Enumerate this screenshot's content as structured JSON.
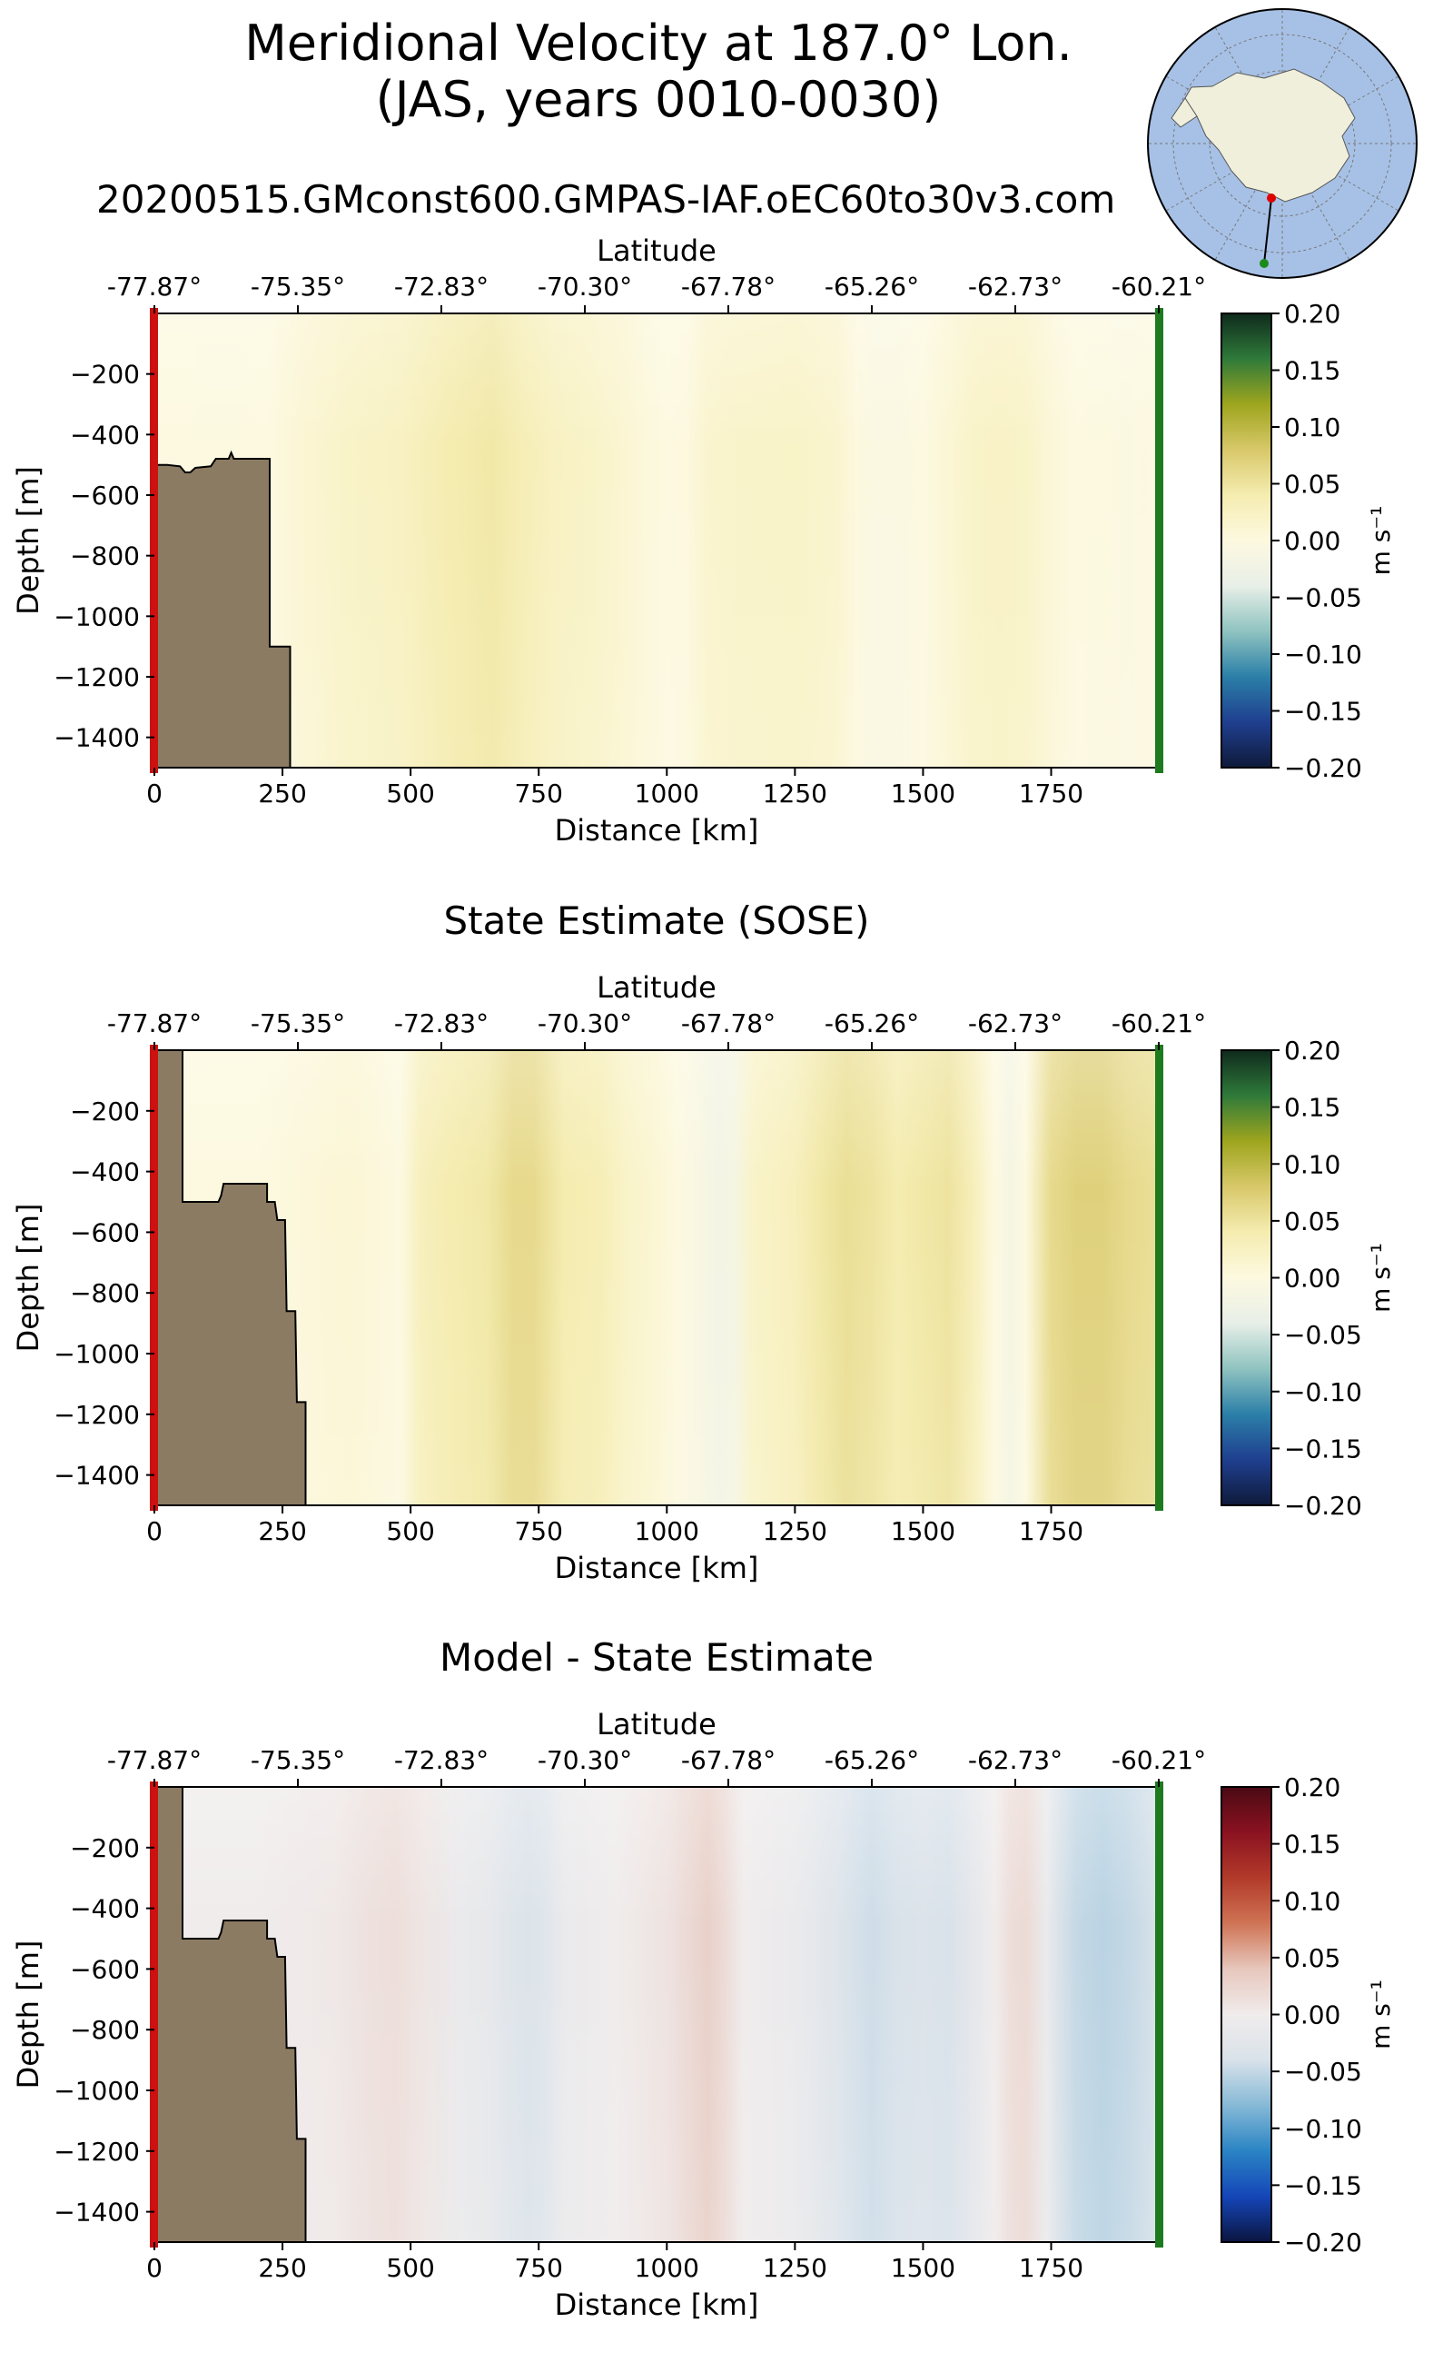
{
  "figure": {
    "title_line1": "Meridional Velocity at 187.0° Lon.",
    "title_line2": "(JAS, years 0010-0030)",
    "subtitle": "20200515.GMconst600.GMPAS-IAF.oEC60to30v3.com"
  },
  "inset_map": {
    "description_icon": "antarctica-polar-map-icon",
    "ocean_color": "#a7c1e6",
    "land_color": "#efefdc",
    "transect_start_color": "#e00000",
    "transect_end_color": "#1a8a1a"
  },
  "colors": {
    "bathymetry": "#8c7b63",
    "start_marker": "#cc1111",
    "end_marker": "#1e7a1e"
  },
  "colormaps": {
    "velocity": [
      "#0f1a3a",
      "#1f3f8f",
      "#2b7fa8",
      "#8fc3c0",
      "#e8efe8",
      "#fdf9e0",
      "#f5ecb0",
      "#d8c86a",
      "#9ea51e",
      "#2f7a3a",
      "#0f2a1c"
    ],
    "difference": [
      "#0b1540",
      "#1546b8",
      "#2a84c4",
      "#86b9d6",
      "#d9e2ea",
      "#f0ecec",
      "#e7c7bd",
      "#cf7455",
      "#b23a2a",
      "#8b1220",
      "#4a0a14"
    ]
  },
  "chart_data": [
    {
      "type": "heatmap",
      "title": "",
      "xlabel": "Distance [km]",
      "x_ticks": [
        "0",
        "250",
        "500",
        "750",
        "1000",
        "1250",
        "1500",
        "1750"
      ],
      "x_tick_values": [
        0,
        250,
        500,
        750,
        1000,
        1250,
        1500,
        1750
      ],
      "xlim": [
        0,
        1960
      ],
      "top_xlabel": "Latitude",
      "top_ticks": [
        "-77.87°",
        "-75.35°",
        "-72.83°",
        "-70.30°",
        "-67.78°",
        "-65.26°",
        "-62.73°",
        "-60.21°"
      ],
      "ylabel": "Depth [m]",
      "y_ticks": [
        "−200",
        "−400",
        "−600",
        "−800",
        "−1000",
        "−1200",
        "−1400"
      ],
      "y_tick_values": [
        -200,
        -400,
        -600,
        -800,
        -1000,
        -1200,
        -1400
      ],
      "ylim": [
        -1500,
        0
      ],
      "colorbar_label": "m s⁻¹",
      "colorbar_ticks": [
        "0.20",
        "0.15",
        "0.10",
        "0.05",
        "0.00",
        "−0.05",
        "−0.10",
        "−0.15",
        "−0.20"
      ],
      "colorbar_range": [
        -0.2,
        0.2
      ],
      "colormap": "velocity",
      "bathymetry": [
        [
          0,
          -500
        ],
        [
          25,
          -500
        ],
        [
          50,
          -505
        ],
        [
          60,
          -525
        ],
        [
          70,
          -525
        ],
        [
          80,
          -510
        ],
        [
          110,
          -505
        ],
        [
          120,
          -480
        ],
        [
          145,
          -480
        ],
        [
          150,
          -460
        ],
        [
          155,
          -480
        ],
        [
          225,
          -480
        ],
        [
          225,
          -1100
        ],
        [
          265,
          -1100
        ],
        [
          265,
          -1500
        ]
      ],
      "profile_x": [
        0,
        60,
        120,
        220,
        300,
        380,
        480,
        580,
        660,
        720,
        780,
        850,
        920,
        960,
        1000,
        1040,
        1080,
        1150,
        1250,
        1330,
        1370,
        1400,
        1450,
        1500,
        1550,
        1600,
        1650,
        1700,
        1760,
        1800,
        1850,
        1900,
        1960
      ],
      "profile_v": [
        0.0,
        0.0,
        -0.002,
        0.0,
        0.012,
        0.02,
        0.025,
        0.04,
        0.045,
        0.035,
        0.025,
        0.02,
        0.012,
        0.004,
        0.0,
        0.002,
        0.015,
        0.018,
        0.02,
        0.015,
        0.002,
        -0.006,
        -0.005,
        0.0,
        0.01,
        0.02,
        0.022,
        0.02,
        0.005,
        0.0,
        -0.002,
        -0.004,
        0.0
      ]
    },
    {
      "type": "heatmap",
      "title": "State Estimate (SOSE)",
      "xlabel": "Distance [km]",
      "x_ticks": [
        "0",
        "250",
        "500",
        "750",
        "1000",
        "1250",
        "1500",
        "1750"
      ],
      "x_tick_values": [
        0,
        250,
        500,
        750,
        1000,
        1250,
        1500,
        1750
      ],
      "xlim": [
        0,
        1960
      ],
      "top_xlabel": "Latitude",
      "top_ticks": [
        "-77.87°",
        "-75.35°",
        "-72.83°",
        "-70.30°",
        "-67.78°",
        "-65.26°",
        "-62.73°",
        "-60.21°"
      ],
      "ylabel": "Depth [m]",
      "y_ticks": [
        "−200",
        "−400",
        "−600",
        "−800",
        "−1000",
        "−1200",
        "−1400"
      ],
      "y_tick_values": [
        -200,
        -400,
        -600,
        -800,
        -1000,
        -1200,
        -1400
      ],
      "ylim": [
        -1500,
        0
      ],
      "colorbar_label": "m s⁻¹",
      "colorbar_ticks": [
        "0.20",
        "0.15",
        "0.10",
        "0.05",
        "0.00",
        "−0.05",
        "−0.10",
        "−0.15",
        "−0.20"
      ],
      "colorbar_range": [
        -0.2,
        0.2
      ],
      "colormap": "velocity",
      "bathymetry": [
        [
          0,
          0
        ],
        [
          55,
          0
        ],
        [
          55,
          -500
        ],
        [
          125,
          -500
        ],
        [
          130,
          -480
        ],
        [
          135,
          -440
        ],
        [
          220,
          -440
        ],
        [
          220,
          -500
        ],
        [
          235,
          -500
        ],
        [
          240,
          -560
        ],
        [
          255,
          -560
        ],
        [
          258,
          -860
        ],
        [
          275,
          -860
        ],
        [
          278,
          -1160
        ],
        [
          295,
          -1160
        ],
        [
          295,
          -1500
        ]
      ],
      "profile_x": [
        0,
        100,
        200,
        300,
        380,
        430,
        480,
        520,
        580,
        650,
        700,
        740,
        800,
        870,
        920,
        980,
        1020,
        1060,
        1100,
        1130,
        1170,
        1250,
        1300,
        1350,
        1400,
        1450,
        1500,
        1550,
        1600,
        1640,
        1670,
        1700,
        1750,
        1800,
        1850,
        1900,
        1960
      ],
      "profile_v": [
        0.0,
        0.0,
        0.0,
        0.005,
        0.01,
        0.005,
        -0.002,
        0.03,
        0.04,
        0.045,
        0.06,
        0.06,
        0.04,
        0.035,
        0.02,
        0.01,
        0.0,
        -0.01,
        -0.02,
        -0.015,
        0.02,
        0.03,
        0.045,
        0.055,
        0.05,
        0.04,
        0.045,
        0.05,
        0.03,
        0.0,
        -0.015,
        0.0,
        0.06,
        0.07,
        0.07,
        0.06,
        0.055
      ]
    },
    {
      "type": "heatmap",
      "title": "Model - State Estimate",
      "xlabel": "Distance [km]",
      "x_ticks": [
        "0",
        "250",
        "500",
        "750",
        "1000",
        "1250",
        "1500",
        "1750"
      ],
      "x_tick_values": [
        0,
        250,
        500,
        750,
        1000,
        1250,
        1500,
        1750
      ],
      "xlim": [
        0,
        1960
      ],
      "top_xlabel": "Latitude",
      "top_ticks": [
        "-77.87°",
        "-75.35°",
        "-72.83°",
        "-70.30°",
        "-67.78°",
        "-65.26°",
        "-62.73°",
        "-60.21°"
      ],
      "ylabel": "Depth [m]",
      "y_ticks": [
        "−200",
        "−400",
        "−600",
        "−800",
        "−1000",
        "−1200",
        "−1400"
      ],
      "y_tick_values": [
        -200,
        -400,
        -600,
        -800,
        -1000,
        -1200,
        -1400
      ],
      "ylim": [
        -1500,
        0
      ],
      "colorbar_label": "m s⁻¹",
      "colorbar_ticks": [
        "0.20",
        "0.15",
        "0.10",
        "0.05",
        "0.00",
        "−0.05",
        "−0.10",
        "−0.15",
        "−0.20"
      ],
      "colorbar_range": [
        -0.2,
        0.2
      ],
      "colormap": "difference",
      "bathymetry": [
        [
          0,
          0
        ],
        [
          55,
          0
        ],
        [
          55,
          -500
        ],
        [
          125,
          -500
        ],
        [
          130,
          -480
        ],
        [
          135,
          -440
        ],
        [
          220,
          -440
        ],
        [
          220,
          -500
        ],
        [
          235,
          -500
        ],
        [
          240,
          -560
        ],
        [
          255,
          -560
        ],
        [
          258,
          -860
        ],
        [
          275,
          -860
        ],
        [
          278,
          -1160
        ],
        [
          295,
          -1160
        ],
        [
          295,
          -1500
        ]
      ],
      "profile_x": [
        0,
        200,
        350,
        420,
        470,
        520,
        600,
        650,
        700,
        730,
        760,
        800,
        900,
        1000,
        1060,
        1080,
        1110,
        1150,
        1250,
        1330,
        1400,
        1450,
        1500,
        1550,
        1600,
        1640,
        1670,
        1700,
        1740,
        1800,
        1850,
        1900,
        1960
      ],
      "profile_v": [
        0.0,
        0.0,
        0.004,
        0.012,
        0.015,
        0.008,
        -0.01,
        -0.015,
        -0.03,
        -0.035,
        -0.03,
        -0.01,
        0.0,
        0.01,
        0.025,
        0.03,
        0.02,
        0.0,
        -0.01,
        -0.03,
        -0.045,
        -0.04,
        -0.035,
        -0.04,
        -0.02,
        0.0,
        0.015,
        0.02,
        -0.01,
        -0.05,
        -0.055,
        -0.05,
        -0.04
      ]
    }
  ]
}
